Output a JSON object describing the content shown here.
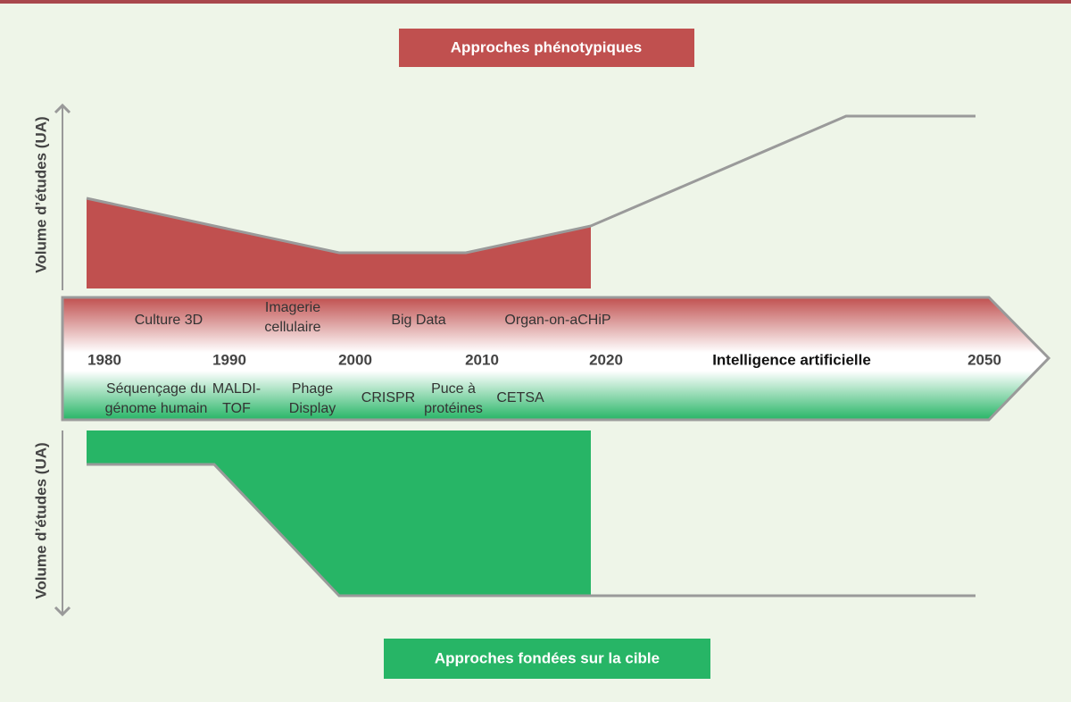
{
  "top_banner": "Approches phénotypiques",
  "bottom_banner": "Approches fondées sur la cible",
  "top_axis_label": "Volume d’études (UA)",
  "bottom_axis_label": "Volume d’études (UA)",
  "timeline": {
    "years": [
      "1980",
      "1990",
      "2000",
      "2010",
      "2020"
    ],
    "future_label": "Intelligence artificielle",
    "end_year": "2050"
  },
  "phenotypic_technologies": [
    {
      "lines": [
        "Culture 3D"
      ]
    },
    {
      "lines": [
        "Imagerie",
        "cellulaire"
      ]
    },
    {
      "lines": [
        "Big Data"
      ]
    },
    {
      "lines": [
        "Organ-on-aCHiP"
      ]
    }
  ],
  "target_technologies": [
    {
      "lines": [
        "Séquençage du",
        "génome humain"
      ]
    },
    {
      "lines": [
        "MALDI-",
        "TOF"
      ]
    },
    {
      "lines": [
        "Phage",
        "Display"
      ]
    },
    {
      "lines": [
        "CRISPR"
      ]
    },
    {
      "lines": [
        "Puce à",
        "protéines"
      ]
    },
    {
      "lines": [
        "CETSA"
      ]
    }
  ]
}
